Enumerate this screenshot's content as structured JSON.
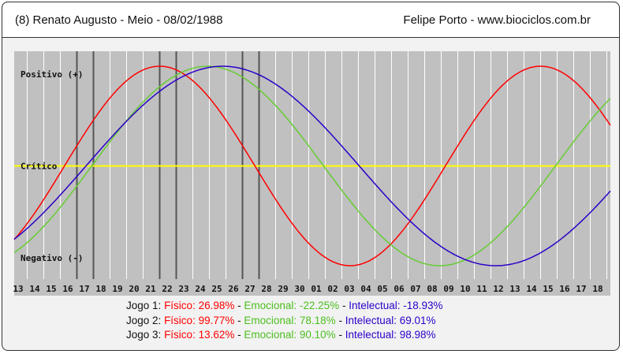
{
  "header": {
    "left": "(8)  Renato Augusto - Meio -  08/02/1988",
    "right": "Felipe Porto   -   www.biociclos.com.br"
  },
  "chart_data": {
    "type": "line",
    "x_ticks": [
      "13",
      "14",
      "15",
      "16",
      "17",
      "18",
      "19",
      "20",
      "21",
      "22",
      "23",
      "24",
      "25",
      "26",
      "27",
      "28",
      "29",
      "30",
      "01",
      "02",
      "03",
      "04",
      "05",
      "06",
      "07",
      "08",
      "09",
      "10",
      "11",
      "12",
      "13",
      "14",
      "15",
      "16",
      "17",
      "18"
    ],
    "y_labels": {
      "positive": "Positivo (+)",
      "critical": "Crítico",
      "negative": "Negativo (-)"
    },
    "ylim": [
      -100,
      100
    ],
    "series": [
      {
        "name": "Físico",
        "color": "#ff0000",
        "period_days": 23,
        "peak_tick_index": 8.5
      },
      {
        "name": "Emocional",
        "color": "#66cc33",
        "period_days": 28,
        "peak_tick_index": 11.4
      },
      {
        "name": "Intelectual",
        "color": "#2a00c8",
        "period_days": 33,
        "peak_tick_index": 12.3
      }
    ],
    "critical_line_color": "#ffff00",
    "game_markers": [
      3.5,
      4.5,
      8.5,
      9.5,
      13.5,
      14.5
    ]
  },
  "legend": [
    {
      "label": "Jogo 1:",
      "fisico": "Físico: 26.98%",
      "emocional": "Emocional: -22.25%",
      "intelectual": "Intelectual: -18.93%"
    },
    {
      "label": "Jogo 2:",
      "fisico": "Físico: 99.77%",
      "emocional": "Emocional: 78.18%",
      "intelectual": "Intelectual: 69.01%"
    },
    {
      "label": "Jogo 3:",
      "fisico": "Físico: 13.62%",
      "emocional": "Emocional: 90.10%",
      "intelectual": "Intelectual: 98.98%"
    }
  ],
  "separator": " - "
}
